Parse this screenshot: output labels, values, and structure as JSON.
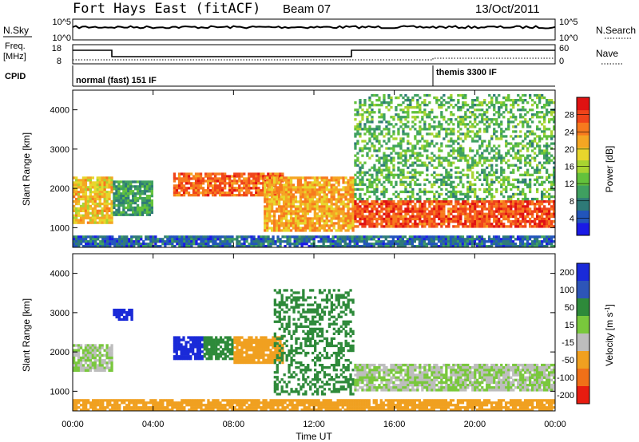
{
  "header": {
    "title": "Fort Hays East (fitACF)",
    "beam": "Beam 07",
    "date": "13/Oct/2011"
  },
  "status_panels": {
    "nsky_label": "N.Sky",
    "nsky_ticks": [
      "10^5",
      "10^0"
    ],
    "nsearch_label": "N.Search",
    "nsearch_ticks": [
      "10^5",
      "10^0"
    ],
    "freq_label": "Freq.",
    "freq_unit": "[MHz]",
    "freq_ticks": [
      "18",
      "8"
    ],
    "nave_label": "Nave",
    "nave_ticks": [
      "60",
      "0"
    ],
    "cpid_label": "CPID",
    "cpid_segments": [
      {
        "start": "00:00",
        "label": "normal (fast) 151 IF"
      },
      {
        "start": "18:00",
        "label": "themis 3300 IF"
      }
    ]
  },
  "chart_data": [
    {
      "type": "heatmap",
      "title": "Power",
      "xlabel": "Time UT",
      "ylabel": "Slant Range [km]",
      "x_ticks": [
        "00:00",
        "04:00",
        "08:00",
        "12:00",
        "16:00",
        "20:00",
        "00:00"
      ],
      "y_ticks": [
        1000,
        2000,
        3000,
        4000
      ],
      "ylim": [
        500,
        4500
      ],
      "colorbar": {
        "label": "Power [dB]",
        "ticks": [
          4,
          8,
          12,
          16,
          20,
          24,
          28
        ],
        "range": [
          0,
          32
        ],
        "colors": [
          "#1a1ae6",
          "#2255bb",
          "#2e7a77",
          "#3fa060",
          "#63c23c",
          "#a8d431",
          "#e8d62c",
          "#f5a623",
          "#f77a1e",
          "#f0441a",
          "#e01212"
        ]
      },
      "regions": [
        {
          "t": [
            0.0,
            2.0
          ],
          "r": [
            1100,
            2300
          ],
          "value": 20
        },
        {
          "t": [
            2.0,
            4.0
          ],
          "r": [
            1300,
            2200
          ],
          "value": 10
        },
        {
          "t": [
            5.0,
            10.5
          ],
          "r": [
            1800,
            2400
          ],
          "value": 26
        },
        {
          "t": [
            9.5,
            14.0
          ],
          "r": [
            900,
            2300
          ],
          "value": 22
        },
        {
          "t": [
            14.0,
            24.0
          ],
          "r": [
            1000,
            1700
          ],
          "value": 27
        },
        {
          "t": [
            14.0,
            24.0
          ],
          "r": [
            1700,
            4400
          ],
          "value": 12
        },
        {
          "t": [
            0.0,
            24.0
          ],
          "r": [
            500,
            800
          ],
          "value": 6
        }
      ]
    },
    {
      "type": "heatmap",
      "title": "Velocity",
      "xlabel": "Time UT",
      "ylabel": "Slant Range [km]",
      "x_ticks": [
        "00:00",
        "04:00",
        "08:00",
        "12:00",
        "16:00",
        "20:00",
        "00:00"
      ],
      "y_ticks": [
        1000,
        2000,
        3000,
        4000
      ],
      "ylim": [
        500,
        4500
      ],
      "colorbar": {
        "label": "Velocity [m s^-1]",
        "tick_labels": [
          "200",
          "100",
          "50",
          "15",
          "-15",
          "-50",
          "-100",
          "-200"
        ],
        "colors": [
          "#1a2ad8",
          "#2d55b8",
          "#2e8a3a",
          "#79c83c",
          "#bdbdbd",
          "#f0a020",
          "#f07018",
          "#e81c10"
        ]
      },
      "regions": [
        {
          "t": [
            0.0,
            2.0
          ],
          "r": [
            1500,
            2200
          ],
          "value": 0
        },
        {
          "t": [
            2.0,
            3.0
          ],
          "r": [
            2800,
            3100
          ],
          "value": 200
        },
        {
          "t": [
            5.0,
            6.5
          ],
          "r": [
            1800,
            2400
          ],
          "value": 200
        },
        {
          "t": [
            6.5,
            8.0
          ],
          "r": [
            1800,
            2400
          ],
          "value": 40
        },
        {
          "t": [
            8.0,
            10.5
          ],
          "r": [
            1700,
            2400
          ],
          "value": -40
        },
        {
          "t": [
            10.0,
            14.0
          ],
          "r": [
            900,
            3600
          ],
          "value": 40
        },
        {
          "t": [
            14.0,
            24.0
          ],
          "r": [
            1000,
            1700
          ],
          "value": 0
        },
        {
          "t": [
            0.0,
            24.0
          ],
          "r": [
            500,
            800
          ],
          "value": -60
        }
      ]
    }
  ]
}
